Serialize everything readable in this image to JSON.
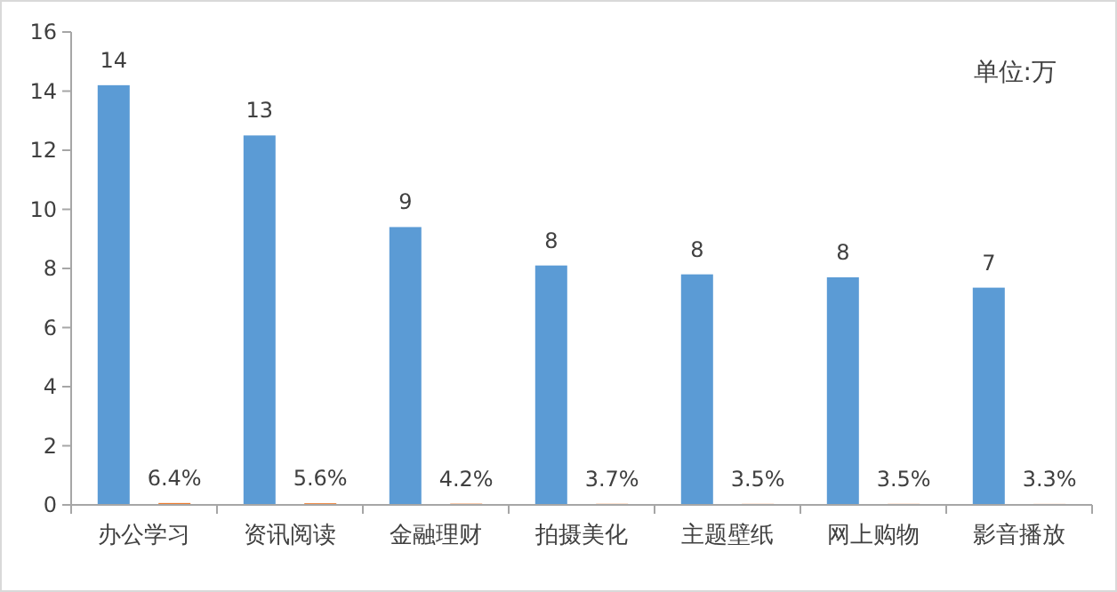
{
  "chart_data": {
    "type": "bar",
    "categories": [
      "办公学习",
      "资讯阅读",
      "金融理财",
      "拍摄美化",
      "主题壁纸",
      "网上购物",
      "影音播放"
    ],
    "series": [
      {
        "color": "#5b9bd5",
        "values": [
          14.2,
          12.5,
          9.4,
          8.1,
          7.8,
          7.7,
          7.35
        ],
        "value_labels": [
          "14",
          "13",
          "9",
          "8",
          "8",
          "8",
          "7"
        ]
      },
      {
        "color": "#ed7d31",
        "values": [
          0.064,
          0.056,
          0.042,
          0.037,
          0.035,
          0.035,
          0.033
        ],
        "value_labels": [
          "6.4%",
          "5.6%",
          "4.2%",
          "3.7%",
          "3.5%",
          "3.5%",
          "3.3%"
        ]
      }
    ],
    "ylim": [
      0,
      16
    ],
    "yticks": [
      0,
      2,
      4,
      6,
      8,
      10,
      12,
      14,
      16
    ],
    "annotations": [
      "单位:万"
    ]
  }
}
